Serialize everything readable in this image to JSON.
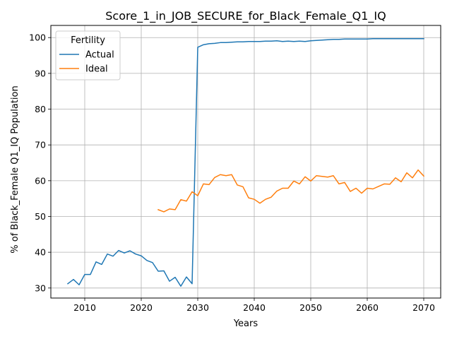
{
  "chart_data": {
    "type": "line",
    "title": "Score_1_in_JOB_SECURE_for_Black_Female_Q1_IQ",
    "xlabel": "Years",
    "ylabel": "% of Black_Female Q1_IQ Population",
    "xlim": [
      2004,
      2073
    ],
    "ylim": [
      27.2,
      103.4
    ],
    "xticks": [
      2010,
      2020,
      2030,
      2040,
      2050,
      2060,
      2070
    ],
    "yticks": [
      30,
      40,
      50,
      60,
      70,
      80,
      90,
      100
    ],
    "grid": true,
    "legend": {
      "title": "Fertility",
      "position": "top-left",
      "entries": [
        "Actual",
        "Ideal"
      ]
    },
    "series": [
      {
        "name": "Actual",
        "color": "#1f77b4",
        "x": [
          2007,
          2008,
          2009,
          2010,
          2011,
          2012,
          2013,
          2014,
          2015,
          2016,
          2017,
          2018,
          2019,
          2020,
          2021,
          2022,
          2023,
          2024,
          2025,
          2026,
          2027,
          2028,
          2029,
          2030,
          2031,
          2032,
          2033,
          2034,
          2035,
          2036,
          2037,
          2038,
          2039,
          2040,
          2041,
          2042,
          2043,
          2044,
          2045,
          2046,
          2047,
          2048,
          2049,
          2050,
          2051,
          2052,
          2053,
          2054,
          2055,
          2056,
          2057,
          2058,
          2059,
          2060,
          2061,
          2062,
          2063,
          2064,
          2065,
          2066,
          2067,
          2068,
          2069,
          2070
        ],
        "y": [
          31.2,
          32.4,
          30.9,
          33.8,
          33.8,
          37.3,
          36.6,
          39.5,
          38.9,
          40.5,
          39.8,
          40.4,
          39.5,
          39.0,
          37.7,
          37.1,
          34.7,
          34.8,
          31.9,
          33.0,
          30.5,
          33.1,
          31.2,
          97.3,
          98.0,
          98.3,
          98.4,
          98.6,
          98.6,
          98.7,
          98.8,
          98.8,
          98.9,
          98.9,
          98.9,
          99.0,
          99.0,
          99.1,
          98.9,
          99.0,
          98.9,
          99.0,
          98.9,
          99.1,
          99.2,
          99.3,
          99.4,
          99.5,
          99.5,
          99.6,
          99.6,
          99.6,
          99.6,
          99.6,
          99.7,
          99.7,
          99.7,
          99.7,
          99.7,
          99.7,
          99.7,
          99.7,
          99.7,
          99.7
        ]
      },
      {
        "name": "Ideal",
        "color": "#ff7f0e",
        "x": [
          2023,
          2024,
          2025,
          2026,
          2027,
          2028,
          2029,
          2030,
          2031,
          2032,
          2033,
          2034,
          2035,
          2036,
          2037,
          2038,
          2039,
          2040,
          2041,
          2042,
          2043,
          2044,
          2045,
          2046,
          2047,
          2048,
          2049,
          2050,
          2051,
          2052,
          2053,
          2054,
          2055,
          2056,
          2057,
          2058,
          2059,
          2060,
          2061,
          2062,
          2063,
          2064,
          2065,
          2066,
          2067,
          2068,
          2069,
          2070
        ],
        "y": [
          51.9,
          51.3,
          52.1,
          51.9,
          54.7,
          54.3,
          56.9,
          55.8,
          59.1,
          58.9,
          60.9,
          61.7,
          61.4,
          61.7,
          58.8,
          58.3,
          55.2,
          54.8,
          53.7,
          54.8,
          55.4,
          57.1,
          57.9,
          57.9,
          59.9,
          59.1,
          61.1,
          59.9,
          61.4,
          61.2,
          61.0,
          61.4,
          59.1,
          59.5,
          57.0,
          57.9,
          56.5,
          57.9,
          57.7,
          58.4,
          59.1,
          59.0,
          60.8,
          59.7,
          62.2,
          60.8,
          63.0,
          61.3
        ]
      }
    ]
  }
}
